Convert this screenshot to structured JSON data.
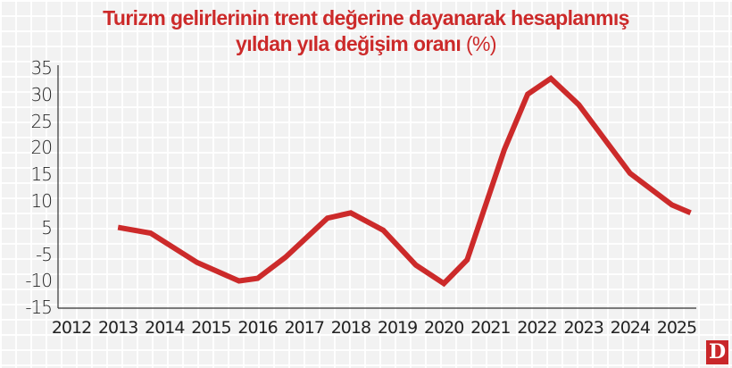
{
  "header": {
    "title_line1": "Turizm gelirlerinin trent değerine dayanarak hesaplanmış",
    "title_line2": "yıldan yıla değişim oranı",
    "title_unit": "(%)"
  },
  "logo": {
    "label": "D"
  },
  "colors": {
    "title": "#cc2a2a",
    "line": "#cc2a2a",
    "background": "#f2f2f2",
    "grid": "#ffffff",
    "axis": "#333333",
    "logo_bg": "#c9272a"
  },
  "chart_data": {
    "type": "line",
    "title": "Turizm gelirlerinin trent değerine dayanarak hesaplanmış yıldan yıla değişim oranı (%)",
    "xlabel": "",
    "ylabel": "",
    "x_ticks": [
      "2012",
      "2013",
      "2014",
      "2015",
      "2016",
      "2017",
      "2018",
      "2019",
      "2020",
      "2021",
      "2022",
      "2023",
      "2024",
      "2025"
    ],
    "y_ticks": [
      "35",
      "30",
      "25",
      "20",
      "15",
      "10",
      "5",
      "-5",
      "-10",
      "-15"
    ],
    "ylim": [
      -15,
      35
    ],
    "xlim": [
      2012,
      2025
    ],
    "grid": true,
    "legend": null,
    "series": [
      {
        "name": "Yıldan yıla değişim oranı (%)",
        "color": "#cc2a2a",
        "x": [
          2013.0,
          2013.7,
          2014.7,
          2015.6,
          2016.0,
          2016.6,
          2017.5,
          2018.0,
          2018.7,
          2019.4,
          2020.0,
          2020.5,
          2021.3,
          2021.8,
          2022.3,
          2022.9,
          2024.0,
          2024.9,
          2025.3
        ],
        "values": [
          4.5,
          2.5,
          -6.5,
          -10,
          -9.5,
          -5.5,
          6.5,
          7.5,
          3.5,
          -7,
          -10.5,
          -6,
          19.5,
          30,
          33,
          28,
          15,
          9,
          7.5
        ]
      }
    ]
  }
}
